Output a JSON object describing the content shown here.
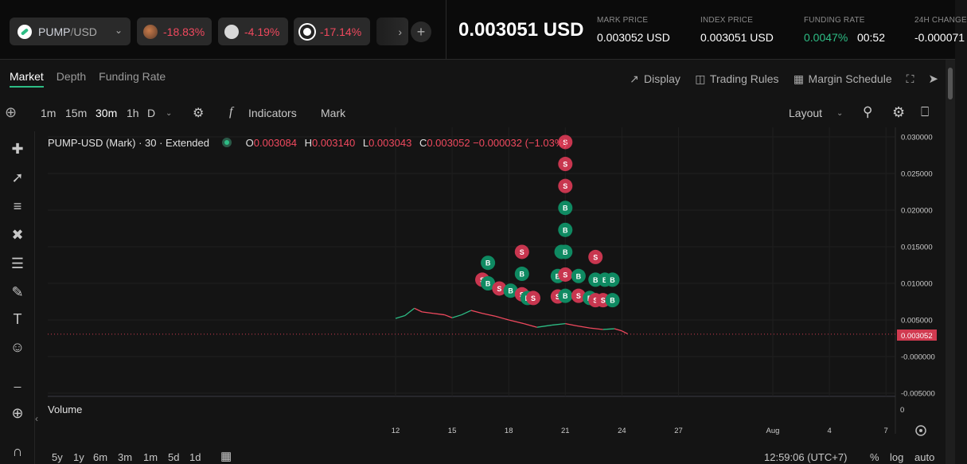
{
  "pair": {
    "base": "PUMP",
    "sep": "/",
    "quote": "USD"
  },
  "tickers": [
    {
      "change": "-18.83%",
      "icon": "bird-coin-icon"
    },
    {
      "change": "-4.19%",
      "icon": "diamond-coin-icon"
    },
    {
      "change": "-17.14%",
      "icon": "ring-coin-icon"
    }
  ],
  "price": "0.003051 USD",
  "stats": {
    "mark_label": "MARK PRICE",
    "mark_value": "0.003052 USD",
    "index_label": "INDEX PRICE",
    "index_value": "0.003051 USD",
    "funding_label": "FUNDING RATE",
    "funding_value": "0.0047%",
    "funding_countdown": "00:52",
    "change_label": "24H CHANGE",
    "change_value": "-0.000071"
  },
  "tabs": [
    "Market",
    "Depth",
    "Funding Rate"
  ],
  "right_tools": [
    "Display",
    "Trading Rules",
    "Margin Schedule"
  ],
  "intervals": [
    "1m",
    "15m",
    "30m",
    "1h",
    "D"
  ],
  "indicators_label": "Indicators",
  "mark_label": "Mark",
  "layout_label": "Layout",
  "legend": {
    "title": "PUMP-USD (Mark) · 30 · Extended",
    "o_k": "O",
    "o": "0.003084",
    "h_k": "H",
    "h": "0.003140",
    "l_k": "L",
    "l": "0.003043",
    "c_k": "C",
    "c": "0.003052 −0.000032 (−1.03%)"
  },
  "volume_label": "Volume",
  "bottom": {
    "ranges": [
      "5y",
      "1y",
      "6m",
      "3m",
      "1m",
      "5d",
      "1d"
    ],
    "time": "12:59:06 (UTC+7)",
    "pct": "%",
    "log": "log",
    "auto": "auto"
  },
  "colors": {
    "up": "#2dbd85",
    "down": "#f0495e",
    "sell_marker": "#c8364f",
    "buy_marker": "#0f8a62"
  },
  "chart_data": {
    "type": "line",
    "y_ticks": [
      "0.030000",
      "0.025000",
      "0.020000",
      "0.015000",
      "0.010000",
      "0.005000",
      "-0.000000",
      "-0.005000"
    ],
    "y_values": [
      0.03,
      0.025,
      0.02,
      0.015,
      0.01,
      0.005,
      0,
      -0.005
    ],
    "x_ticks": [
      "12",
      "15",
      "18",
      "21",
      "24",
      "27",
      "Aug",
      "4",
      "7"
    ],
    "last_price_label": "0.003052",
    "volume_axis_label": "0",
    "price_series": [
      {
        "d": 12.0,
        "v": 0.0052
      },
      {
        "d": 12.5,
        "v": 0.0056
      },
      {
        "d": 13.0,
        "v": 0.0066
      },
      {
        "d": 13.4,
        "v": 0.0061
      },
      {
        "d": 14.0,
        "v": 0.0059
      },
      {
        "d": 14.6,
        "v": 0.0057
      },
      {
        "d": 15.0,
        "v": 0.0053
      },
      {
        "d": 15.5,
        "v": 0.0057
      },
      {
        "d": 16.0,
        "v": 0.0063
      },
      {
        "d": 16.6,
        "v": 0.0059
      },
      {
        "d": 17.3,
        "v": 0.0055
      },
      {
        "d": 18.0,
        "v": 0.005
      },
      {
        "d": 18.8,
        "v": 0.0045
      },
      {
        "d": 19.5,
        "v": 0.004
      },
      {
        "d": 20.3,
        "v": 0.0043
      },
      {
        "d": 21.0,
        "v": 0.0045
      },
      {
        "d": 21.6,
        "v": 0.0042
      },
      {
        "d": 22.3,
        "v": 0.0039
      },
      {
        "d": 23.0,
        "v": 0.0037
      },
      {
        "d": 23.6,
        "v": 0.0038
      },
      {
        "d": 24.0,
        "v": 0.0035
      },
      {
        "d": 24.3,
        "v": 0.0031
      }
    ],
    "markers": [
      {
        "d": 21.0,
        "v": 0.0293,
        "t": "S"
      },
      {
        "d": 21.0,
        "v": 0.0263,
        "t": "S"
      },
      {
        "d": 21.0,
        "v": 0.0233,
        "t": "S"
      },
      {
        "d": 21.0,
        "v": 0.0203,
        "t": "B"
      },
      {
        "d": 21.0,
        "v": 0.0173,
        "t": "B"
      },
      {
        "d": 20.8,
        "v": 0.0143,
        "t": "B"
      },
      {
        "d": 21.0,
        "v": 0.0143,
        "t": "B"
      },
      {
        "d": 18.7,
        "v": 0.0143,
        "t": "S"
      },
      {
        "d": 16.9,
        "v": 0.0128,
        "t": "B"
      },
      {
        "d": 22.6,
        "v": 0.0136,
        "t": "S"
      },
      {
        "d": 18.7,
        "v": 0.0113,
        "t": "B"
      },
      {
        "d": 16.6,
        "v": 0.0105,
        "t": "S"
      },
      {
        "d": 16.9,
        "v": 0.01,
        "t": "B"
      },
      {
        "d": 17.5,
        "v": 0.0093,
        "t": "S"
      },
      {
        "d": 18.1,
        "v": 0.009,
        "t": "B"
      },
      {
        "d": 18.7,
        "v": 0.0085,
        "t": "S"
      },
      {
        "d": 19.0,
        "v": 0.008,
        "t": "B"
      },
      {
        "d": 19.3,
        "v": 0.008,
        "t": "S"
      },
      {
        "d": 20.6,
        "v": 0.011,
        "t": "B"
      },
      {
        "d": 21.0,
        "v": 0.0112,
        "t": "S"
      },
      {
        "d": 21.7,
        "v": 0.011,
        "t": "B"
      },
      {
        "d": 22.6,
        "v": 0.0105,
        "t": "B"
      },
      {
        "d": 23.1,
        "v": 0.0105,
        "t": "B"
      },
      {
        "d": 23.5,
        "v": 0.0105,
        "t": "B"
      },
      {
        "d": 20.6,
        "v": 0.0082,
        "t": "S"
      },
      {
        "d": 21.0,
        "v": 0.0083,
        "t": "B"
      },
      {
        "d": 21.7,
        "v": 0.0083,
        "t": "S"
      },
      {
        "d": 22.3,
        "v": 0.008,
        "t": "B"
      },
      {
        "d": 22.6,
        "v": 0.0077,
        "t": "S"
      },
      {
        "d": 23.0,
        "v": 0.0077,
        "t": "S"
      },
      {
        "d": 23.5,
        "v": 0.0077,
        "t": "B"
      }
    ]
  }
}
